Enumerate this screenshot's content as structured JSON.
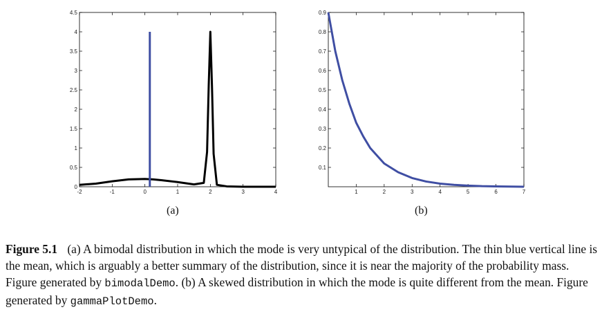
{
  "figure": {
    "label": "Figure 5.1",
    "caption_segments": [
      {
        "text": "(a) A bimodal distribution in which the mode is very untypical of the distribution. The thin blue vertical line is the mean, which is arguably a better summary of the distribution, since it is near the majority of the probability mass. Figure generated by ",
        "mono": false
      },
      {
        "text": "bimodalDemo",
        "mono": true
      },
      {
        "text": ". (b) A skewed distribution in which the mode is quite different from the mean. Figure generated by ",
        "mono": false
      },
      {
        "text": "gammaPlotDemo",
        "mono": true
      },
      {
        "text": ".",
        "mono": false
      }
    ]
  },
  "chart_data": [
    {
      "type": "line",
      "panel_label": "(a)",
      "xlim": [
        -2,
        4
      ],
      "ylim": [
        0,
        4.5
      ],
      "xticks": [
        "-2",
        "-1",
        "0",
        "1",
        "2",
        "3",
        "4"
      ],
      "yticks": [
        "0",
        "0.5",
        "1",
        "1.5",
        "2",
        "2.5",
        "3",
        "3.5",
        "4",
        "4.5"
      ],
      "series": [
        {
          "color": "#000000",
          "x": [
            -2.0,
            -1.5,
            -1.0,
            -0.5,
            0.0,
            0.25,
            0.5,
            1.0,
            1.5,
            1.8,
            1.9,
            1.95,
            2.0,
            2.05,
            2.1,
            2.2,
            2.5,
            3.0,
            3.5,
            4.0
          ],
          "y": [
            0.05,
            0.08,
            0.14,
            0.19,
            0.2,
            0.19,
            0.17,
            0.12,
            0.06,
            0.1,
            0.9,
            2.6,
            4.0,
            2.6,
            0.85,
            0.05,
            0.01,
            0.0,
            0.0,
            0.0
          ]
        },
        {
          "color": "#3f4ea3",
          "x": [
            0.15,
            0.15
          ],
          "y": [
            0,
            4.0
          ]
        }
      ]
    },
    {
      "type": "line",
      "panel_label": "(b)",
      "xlim": [
        0,
        7
      ],
      "ylim": [
        0,
        0.9
      ],
      "xticks": [
        "1",
        "2",
        "3",
        "4",
        "5",
        "6",
        "7"
      ],
      "yticks": [
        "0.1",
        "0.2",
        "0.3",
        "0.4",
        "0.5",
        "0.6",
        "0.7",
        "0.8",
        "0.9"
      ],
      "series": [
        {
          "color": "#3f4ea3",
          "x": [
            0.0,
            0.25,
            0.5,
            0.75,
            1.0,
            1.25,
            1.5,
            1.75,
            2.0,
            2.5,
            3.0,
            3.5,
            4.0,
            4.5,
            5.0,
            5.5,
            6.0,
            6.5,
            7.0
          ],
          "y": [
            0.9,
            0.7,
            0.55,
            0.43,
            0.33,
            0.26,
            0.2,
            0.16,
            0.12,
            0.075,
            0.045,
            0.027,
            0.016,
            0.01,
            0.006,
            0.003,
            0.002,
            0.001,
            0.0
          ]
        }
      ]
    }
  ]
}
